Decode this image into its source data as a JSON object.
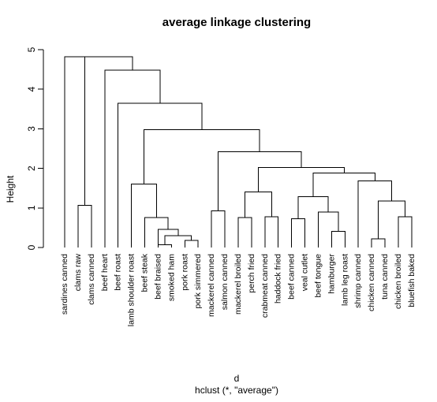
{
  "chart_data": {
    "type": "dendrogram",
    "title": "average linkage clustering",
    "ylabel": "Height",
    "xlabel": "d",
    "sublabel": "hclust (*, \"average\")",
    "ylim": [
      0,
      5
    ],
    "yticks": [
      0,
      1,
      2,
      3,
      4,
      5
    ],
    "leaves": [
      "sardines canned",
      "clams raw",
      "clams canned",
      "beef heart",
      "beef roast",
      "lamb shoulder roast",
      "beef steak",
      "beef braised",
      "smoked ham",
      "pork roast",
      "pork simmered",
      "mackerel canned",
      "salmon canned",
      "mackerel broiled",
      "perch fried",
      "crabmeat canned",
      "haddock fried",
      "beef canned",
      "veal cutlet",
      "beef tongue",
      "hamburger",
      "lamb leg roast",
      "shrimp canned",
      "chicken canned",
      "tuna canned",
      "chicken broiled",
      "bluefish baked"
    ],
    "merges": [
      {
        "left": [
          "leaf",
          8
        ],
        "right": [
          "leaf",
          9
        ],
        "height": 0.07
      },
      {
        "left": [
          "leaf",
          10
        ],
        "right": [
          "leaf",
          11
        ],
        "height": 0.18
      },
      {
        "left": [
          "merge",
          1
        ],
        "right": [
          "merge",
          2
        ],
        "height": 0.3
      },
      {
        "left": [
          "leaf",
          24
        ],
        "right": [
          "leaf",
          25
        ],
        "height": 0.22
      },
      {
        "left": [
          "leaf",
          21
        ],
        "right": [
          "leaf",
          22
        ],
        "height": 0.41
      },
      {
        "left": [
          "leaf",
          8
        ],
        "right": [
          "merge",
          3
        ],
        "height": 0.46
      },
      {
        "left": [
          "leaf",
          18
        ],
        "right": [
          "leaf",
          19
        ],
        "height": 0.73
      },
      {
        "left": [
          "leaf",
          7
        ],
        "right": [
          "merge",
          6
        ],
        "height": 0.76
      },
      {
        "left": [
          "leaf",
          14
        ],
        "right": [
          "leaf",
          15
        ],
        "height": 0.76
      },
      {
        "left": [
          "leaf",
          16
        ],
        "right": [
          "leaf",
          17
        ],
        "height": 0.78
      },
      {
        "left": [
          "leaf",
          26
        ],
        "right": [
          "leaf",
          27
        ],
        "height": 0.78
      },
      {
        "left": [
          "leaf",
          20
        ],
        "right": [
          "merge",
          5
        ],
        "height": 0.9
      },
      {
        "left": [
          "leaf",
          12
        ],
        "right": [
          "leaf",
          13
        ],
        "height": 0.93
      },
      {
        "left": [
          "leaf",
          2
        ],
        "right": [
          "leaf",
          3
        ],
        "height": 1.07
      },
      {
        "left": [
          "merge",
          4
        ],
        "right": [
          "merge",
          11
        ],
        "height": 1.18
      },
      {
        "left": [
          "merge",
          7
        ],
        "right": [
          "merge",
          12
        ],
        "height": 1.28
      },
      {
        "left": [
          "merge",
          9
        ],
        "right": [
          "merge",
          10
        ],
        "height": 1.4
      },
      {
        "left": [
          "leaf",
          6
        ],
        "right": [
          "merge",
          8
        ],
        "height": 1.6
      },
      {
        "left": [
          "leaf",
          23
        ],
        "right": [
          "merge",
          15
        ],
        "height": 1.68
      },
      {
        "left": [
          "merge",
          16
        ],
        "right": [
          "merge",
          19
        ],
        "height": 1.88
      },
      {
        "left": [
          "merge",
          17
        ],
        "right": [
          "merge",
          20
        ],
        "height": 2.02
      },
      {
        "left": [
          "merge",
          13
        ],
        "right": [
          "merge",
          21
        ],
        "height": 2.42
      },
      {
        "left": [
          "merge",
          18
        ],
        "right": [
          "merge",
          22
        ],
        "height": 2.98
      },
      {
        "left": [
          "leaf",
          5
        ],
        "right": [
          "merge",
          23
        ],
        "height": 3.65
      },
      {
        "left": [
          "leaf",
          4
        ],
        "right": [
          "merge",
          24
        ],
        "height": 4.48
      },
      {
        "left": [
          "leaf",
          1
        ],
        "right": [
          "merge",
          25
        ],
        "height": 4.82
      },
      {
        "left": [
          "merge",
          14
        ],
        "right": [
          "merge",
          26
        ],
        "height": 4.82
      }
    ]
  }
}
